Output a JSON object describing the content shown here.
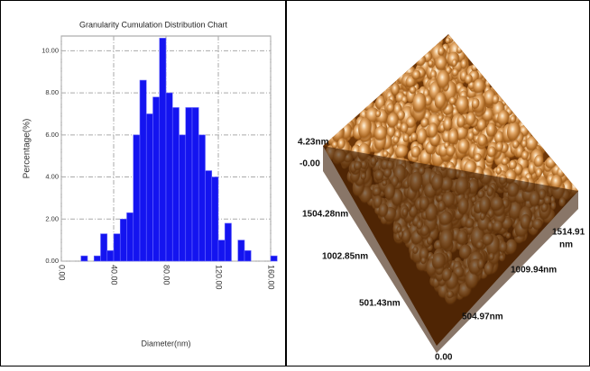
{
  "chart_data": {
    "type": "histogram",
    "title": "Granularity Cumulation Distribution Chart",
    "x_label": "Diameter(nm)",
    "y_label": "Percentage(%)",
    "bins": [
      10,
      15,
      20,
      25,
      30,
      35,
      40,
      45,
      50,
      55,
      60,
      65,
      70,
      75,
      80,
      85,
      90,
      95,
      100,
      105,
      110,
      115,
      120,
      125,
      130,
      135,
      140,
      145,
      150,
      155,
      160,
      165
    ],
    "values": [
      0,
      0.25,
      0,
      0.25,
      1.3,
      0.5,
      1.3,
      2.0,
      2.3,
      6.0,
      8.6,
      7.0,
      7.8,
      10.6,
      8.0,
      7.3,
      6.0,
      7.3,
      7.3,
      6.0,
      4.3,
      4.0,
      1.0,
      1.8,
      0,
      1.0,
      0.5,
      0,
      0,
      0,
      0.25
    ],
    "color": "#1414f0",
    "xlim": [
      0,
      160
    ],
    "ylim": [
      0,
      10.7
    ],
    "xticks": [
      {
        "value": 0,
        "label": "0.00"
      },
      {
        "value": 40,
        "label": "40.00"
      },
      {
        "value": 80,
        "label": "80.00"
      },
      {
        "value": 120,
        "label": "120.00"
      },
      {
        "value": 160,
        "label": "160.00"
      }
    ],
    "yticks": [
      {
        "value": 0,
        "label": "0.00"
      },
      {
        "value": 2,
        "label": "2.00"
      },
      {
        "value": 4,
        "label": "4.00"
      },
      {
        "value": 6,
        "label": "6.00"
      },
      {
        "value": 8,
        "label": "8.00"
      },
      {
        "value": 10,
        "label": "10.00"
      }
    ],
    "grid": true
  },
  "surface_image": {
    "z_max": "4.23nm",
    "z_min": "-0.00",
    "y_axis": [
      "1504.28nm",
      "1002.85nm",
      "501.43nm"
    ],
    "origin": "0.00",
    "x_axis": [
      "504.97nm",
      "1009.94nm",
      "1514.91"
    ],
    "x_unit": "nm"
  }
}
